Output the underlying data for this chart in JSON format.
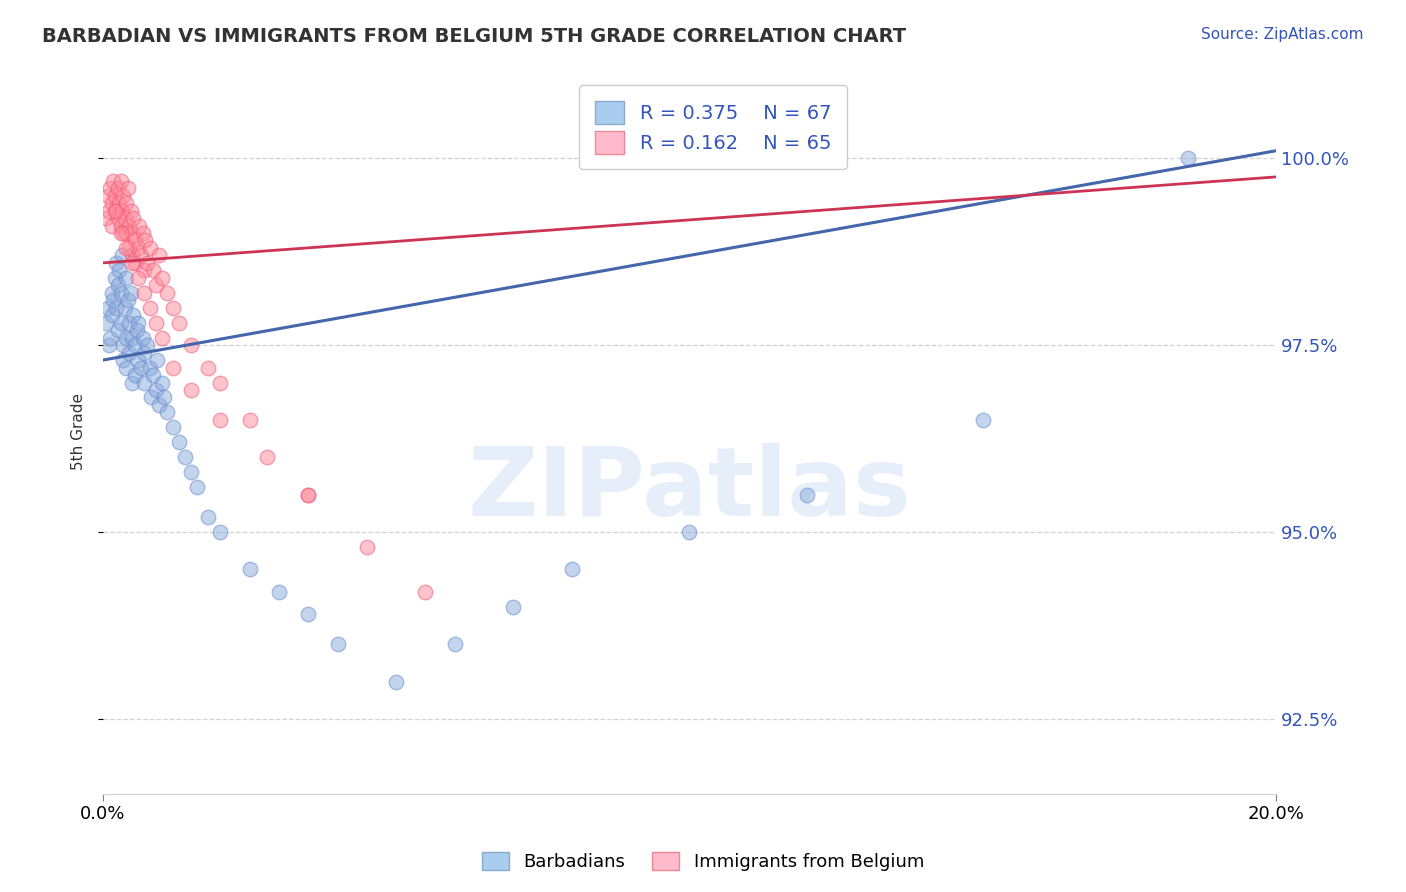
{
  "title": "BARBADIAN VS IMMIGRANTS FROM BELGIUM 5TH GRADE CORRELATION CHART",
  "source_text": "Source: ZipAtlas.com",
  "ylabel": "5th Grade",
  "xlim": [
    0.0,
    20.0
  ],
  "ylim": [
    91.5,
    101.2
  ],
  "yticks": [
    92.5,
    95.0,
    97.5,
    100.0
  ],
  "ytick_labels": [
    "92.5%",
    "95.0%",
    "97.5%",
    "100.0%"
  ],
  "r_blue": 0.375,
  "n_blue": 67,
  "r_pink": 0.162,
  "n_pink": 65,
  "blue_color": "#88AADD",
  "pink_color": "#FF8899",
  "blue_edge_color": "#6688CC",
  "pink_edge_color": "#EE5577",
  "blue_line_color": "#4466AA",
  "pink_line_color": "#CC3355",
  "legend_label_blue": "Barbadians",
  "legend_label_pink": "Immigrants from Belgium",
  "watermark": "ZIPatlas",
  "blue_x": [
    0.05,
    0.08,
    0.1,
    0.12,
    0.15,
    0.15,
    0.18,
    0.2,
    0.22,
    0.22,
    0.25,
    0.25,
    0.28,
    0.3,
    0.3,
    0.32,
    0.35,
    0.35,
    0.38,
    0.4,
    0.4,
    0.4,
    0.42,
    0.45,
    0.45,
    0.48,
    0.5,
    0.5,
    0.52,
    0.55,
    0.55,
    0.58,
    0.6,
    0.6,
    0.65,
    0.68,
    0.7,
    0.7,
    0.75,
    0.8,
    0.82,
    0.85,
    0.9,
    0.92,
    0.95,
    1.0,
    1.05,
    1.1,
    1.2,
    1.3,
    1.4,
    1.5,
    1.6,
    1.8,
    2.0,
    2.5,
    3.0,
    3.5,
    4.0,
    5.0,
    6.0,
    7.0,
    8.0,
    10.0,
    12.0,
    15.0,
    18.5
  ],
  "blue_y": [
    97.8,
    98.0,
    97.5,
    97.6,
    98.2,
    97.9,
    98.1,
    98.4,
    98.6,
    98.0,
    98.3,
    97.7,
    98.5,
    98.2,
    97.8,
    98.7,
    97.5,
    97.3,
    98.0,
    98.4,
    97.6,
    97.2,
    98.1,
    97.8,
    97.4,
    98.2,
    97.6,
    97.0,
    97.9,
    97.5,
    97.1,
    97.7,
    97.3,
    97.8,
    97.2,
    97.6,
    97.4,
    97.0,
    97.5,
    97.2,
    96.8,
    97.1,
    96.9,
    97.3,
    96.7,
    97.0,
    96.8,
    96.6,
    96.4,
    96.2,
    96.0,
    95.8,
    95.6,
    95.2,
    95.0,
    94.5,
    94.2,
    93.9,
    93.5,
    93.0,
    93.5,
    94.0,
    94.5,
    95.0,
    95.5,
    96.5,
    100.0
  ],
  "pink_x": [
    0.05,
    0.08,
    0.1,
    0.12,
    0.15,
    0.15,
    0.18,
    0.2,
    0.22,
    0.25,
    0.25,
    0.28,
    0.3,
    0.3,
    0.32,
    0.35,
    0.35,
    0.38,
    0.4,
    0.4,
    0.42,
    0.45,
    0.45,
    0.48,
    0.5,
    0.5,
    0.52,
    0.55,
    0.55,
    0.6,
    0.62,
    0.65,
    0.68,
    0.7,
    0.72,
    0.75,
    0.8,
    0.85,
    0.9,
    0.95,
    1.0,
    1.1,
    1.2,
    1.3,
    1.5,
    1.8,
    2.0,
    2.5,
    3.5,
    0.2,
    0.3,
    0.4,
    0.5,
    0.6,
    0.7,
    0.8,
    0.9,
    1.0,
    1.2,
    1.5,
    2.0,
    2.8,
    3.5,
    4.5,
    5.5
  ],
  "pink_y": [
    99.2,
    99.5,
    99.3,
    99.6,
    99.4,
    99.1,
    99.7,
    99.5,
    99.3,
    99.6,
    99.2,
    99.4,
    99.1,
    99.7,
    99.3,
    99.0,
    99.5,
    99.2,
    99.4,
    99.0,
    99.6,
    99.1,
    98.8,
    99.3,
    99.0,
    98.7,
    99.2,
    98.9,
    98.6,
    98.8,
    99.1,
    98.7,
    99.0,
    98.5,
    98.9,
    98.6,
    98.8,
    98.5,
    98.3,
    98.7,
    98.4,
    98.2,
    98.0,
    97.8,
    97.5,
    97.2,
    97.0,
    96.5,
    95.5,
    99.3,
    99.0,
    98.8,
    98.6,
    98.4,
    98.2,
    98.0,
    97.8,
    97.6,
    97.2,
    96.9,
    96.5,
    96.0,
    95.5,
    94.8,
    94.2
  ]
}
